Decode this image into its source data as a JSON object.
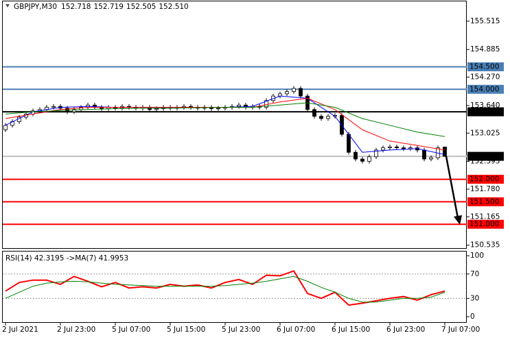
{
  "chart_data": [
    {
      "type": "candlestick",
      "title": "GBPJPY,M30",
      "header_values": [
        "152.718",
        "152.719",
        "152.505",
        "152.510"
      ],
      "open": [
        153.1,
        153.2,
        153.28,
        153.38,
        153.45,
        153.52,
        153.55,
        153.6,
        153.62,
        153.58,
        153.5,
        153.55,
        153.6,
        153.65,
        153.6,
        153.57,
        153.6,
        153.58,
        153.62,
        153.6,
        153.58,
        153.6,
        153.55,
        153.57,
        153.6,
        153.58,
        153.6,
        153.62,
        153.6,
        153.58,
        153.6,
        153.57,
        153.58,
        153.6,
        153.62,
        153.65,
        153.6,
        153.62,
        153.6,
        153.75,
        153.85,
        153.9,
        153.95,
        154.02,
        153.85,
        153.55,
        153.4,
        153.35,
        153.4,
        153.42,
        153.0,
        152.6,
        152.45,
        152.4,
        152.5,
        152.65,
        152.7,
        152.72,
        152.7,
        152.68,
        152.7,
        152.65,
        152.45,
        152.48,
        152.718
      ],
      "high": [
        153.25,
        153.33,
        153.43,
        153.5,
        153.57,
        153.6,
        153.65,
        153.67,
        153.67,
        153.63,
        153.6,
        153.65,
        153.7,
        153.7,
        153.65,
        153.65,
        153.65,
        153.67,
        153.67,
        153.65,
        153.65,
        153.65,
        153.62,
        153.65,
        153.65,
        153.65,
        153.67,
        153.67,
        153.65,
        153.65,
        153.65,
        153.63,
        153.65,
        153.67,
        153.7,
        153.7,
        153.67,
        153.67,
        153.8,
        153.9,
        153.95,
        154.0,
        154.07,
        154.07,
        153.9,
        153.6,
        153.45,
        153.45,
        153.47,
        153.47,
        153.05,
        152.65,
        152.5,
        152.55,
        152.7,
        152.75,
        152.77,
        152.77,
        152.75,
        152.75,
        152.75,
        152.7,
        152.53,
        152.75,
        152.719
      ],
      "low": [
        153.05,
        153.15,
        153.23,
        153.33,
        153.4,
        153.47,
        153.5,
        153.55,
        153.53,
        153.45,
        153.45,
        153.5,
        153.55,
        153.55,
        153.52,
        153.52,
        153.53,
        153.53,
        153.55,
        153.53,
        153.53,
        153.5,
        153.5,
        153.52,
        153.53,
        153.53,
        153.55,
        153.55,
        153.53,
        153.53,
        153.52,
        153.52,
        153.53,
        153.55,
        153.57,
        153.55,
        153.55,
        153.55,
        153.55,
        153.7,
        153.8,
        153.85,
        153.9,
        153.8,
        153.5,
        153.35,
        153.3,
        153.3,
        153.35,
        152.95,
        152.55,
        152.4,
        152.35,
        152.35,
        152.45,
        152.6,
        152.65,
        152.65,
        152.63,
        152.63,
        152.6,
        152.4,
        152.4,
        152.43,
        152.505
      ],
      "close": [
        153.2,
        153.28,
        153.38,
        153.45,
        153.52,
        153.55,
        153.6,
        153.62,
        153.58,
        153.5,
        153.55,
        153.6,
        153.65,
        153.6,
        153.57,
        153.6,
        153.58,
        153.62,
        153.6,
        153.58,
        153.6,
        153.55,
        153.57,
        153.6,
        153.58,
        153.6,
        153.62,
        153.6,
        153.58,
        153.6,
        153.57,
        153.58,
        153.6,
        153.62,
        153.65,
        153.6,
        153.62,
        153.6,
        153.75,
        153.85,
        153.9,
        153.95,
        154.02,
        153.85,
        153.55,
        153.4,
        153.35,
        153.4,
        153.42,
        153.0,
        152.6,
        152.45,
        152.4,
        152.5,
        152.65,
        152.7,
        152.72,
        152.7,
        152.68,
        152.7,
        152.65,
        152.45,
        152.48,
        152.7,
        152.51
      ],
      "overlays": [
        {
          "color": "#0000ff",
          "x": [
            0,
            4,
            8,
            12,
            16,
            20,
            24,
            28,
            32,
            36,
            40,
            44,
            48,
            52,
            56,
            60,
            64
          ],
          "values": [
            153.2,
            153.5,
            153.6,
            153.62,
            153.6,
            153.6,
            153.59,
            153.6,
            153.6,
            153.62,
            153.85,
            153.8,
            153.4,
            152.6,
            152.65,
            152.68,
            152.55
          ]
        },
        {
          "color": "#ff0000",
          "x": [
            0,
            4,
            8,
            12,
            16,
            20,
            24,
            28,
            32,
            36,
            40,
            44,
            48,
            52,
            56,
            60,
            64
          ],
          "values": [
            153.35,
            153.45,
            153.55,
            153.6,
            153.6,
            153.6,
            153.6,
            153.6,
            153.6,
            153.6,
            153.72,
            153.8,
            153.55,
            153.1,
            152.85,
            152.75,
            152.65
          ]
        },
        {
          "color": "#008000",
          "x": [
            0,
            4,
            8,
            12,
            16,
            20,
            24,
            28,
            32,
            36,
            40,
            44,
            48,
            52,
            56,
            60,
            64
          ],
          "values": [
            153.45,
            153.5,
            153.53,
            153.55,
            153.57,
            153.58,
            153.58,
            153.59,
            153.6,
            153.6,
            153.65,
            153.7,
            153.6,
            153.35,
            153.2,
            153.05,
            152.95
          ]
        }
      ],
      "levels": [
        {
          "value": 154.5,
          "label": "154.500",
          "color": "#4a7fb5"
        },
        {
          "value": 154.0,
          "label": "154.000",
          "color": "#4a7fb5"
        },
        {
          "value": 153.5,
          "label": "153.500",
          "color": "#000000"
        },
        {
          "value": 152.51,
          "label": "152.510",
          "color": "#c0c0c0"
        },
        {
          "value": 152.0,
          "label": "152.000",
          "color": "#ff0000"
        },
        {
          "value": 151.5,
          "label": "151.500",
          "color": "#ff0000"
        },
        {
          "value": 151.0,
          "label": "151.000",
          "color": "#ff0000"
        }
      ],
      "xlim": [
        -0.5,
        67.2
      ],
      "ylim": [
        150.47,
        155.97
      ],
      "yticks": [
        155.515,
        154.885,
        {
          "value": 154.27,
          "label": "154.270"
        },
        {
          "value": 153.64,
          "label": "153.640"
        },
        153.025,
        152.395,
        {
          "value": 151.78,
          "label": "151.780"
        },
        151.165,
        150.535
      ]
    },
    {
      "type": "line",
      "title": "RSI(14) 42.3195  ->MA(7) 41.9953",
      "series": [
        {
          "color": "#ff0000",
          "x": [
            0,
            2,
            4,
            6,
            8,
            10,
            12,
            14,
            16,
            18,
            20,
            22,
            24,
            26,
            28,
            30,
            32,
            34,
            36,
            38,
            40,
            42,
            44,
            46,
            48,
            50,
            52,
            54,
            56,
            58,
            60,
            62,
            64
          ],
          "values": [
            42,
            56,
            60,
            60,
            53,
            66,
            58,
            49,
            56,
            47,
            49,
            47,
            53,
            50,
            52,
            47,
            56,
            61,
            53,
            68,
            67,
            75,
            38,
            30,
            40,
            19,
            22,
            26,
            30,
            33,
            27,
            36,
            42
          ]
        },
        {
          "color": "#008000",
          "x": [
            0,
            2,
            4,
            6,
            8,
            10,
            12,
            14,
            16,
            18,
            20,
            22,
            24,
            26,
            28,
            30,
            32,
            34,
            36,
            38,
            40,
            42,
            44,
            46,
            48,
            50,
            52,
            54,
            56,
            58,
            60,
            62,
            64
          ],
          "values": [
            30,
            40,
            50,
            55,
            57,
            58,
            57,
            55,
            53,
            52,
            51,
            50,
            50,
            50,
            50,
            50,
            51,
            53,
            55,
            58,
            62,
            66,
            58,
            48,
            40,
            30,
            24,
            24,
            27,
            30,
            30,
            32,
            40
          ]
        }
      ],
      "xlim": [
        -0.5,
        67.2
      ],
      "ylim": [
        -9,
        108
      ],
      "yticks": [
        100,
        70,
        30,
        0
      ],
      "xticks": [
        {
          "value": 0,
          "label": "2 Jul 2021"
        },
        {
          "value": 8,
          "label": "2 Jul 23:00"
        },
        {
          "value": 16,
          "label": "5 Jul 07:00"
        },
        {
          "value": 24,
          "label": "5 Jul 15:00"
        },
        {
          "value": 32,
          "label": "5 Jul 23:00"
        },
        {
          "value": 40,
          "label": "6 Jul 07:00"
        },
        {
          "value": 48,
          "label": "6 Jul 15:00"
        },
        {
          "value": 56,
          "label": "6 Jul 23:00"
        },
        {
          "value": 64,
          "label": "7 Jul 07:00"
        }
      ]
    }
  ]
}
